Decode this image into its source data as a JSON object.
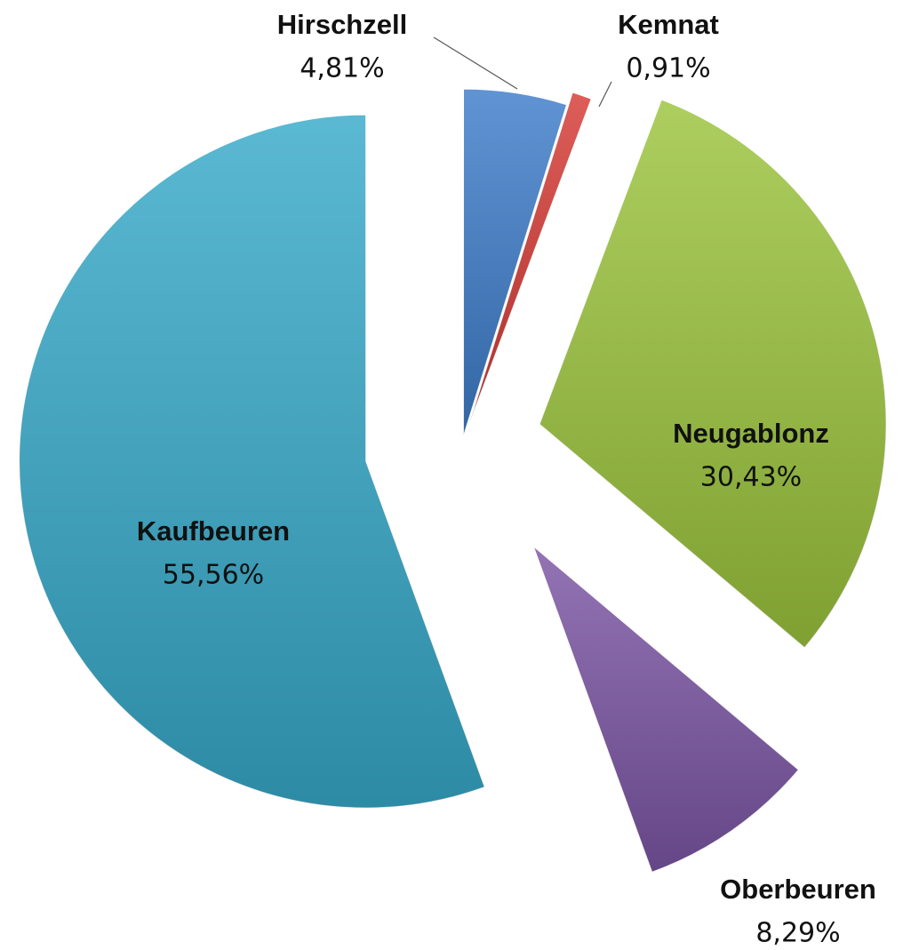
{
  "chart_data": {
    "type": "pie",
    "categories": [
      "Hirschzell",
      "Kemnat",
      "Neugablonz",
      "Oberbeuren",
      "Kaufbeuren"
    ],
    "values": [
      4.81,
      0.91,
      30.43,
      8.29,
      55.56
    ],
    "value_labels": [
      "4,81%",
      "0,91%",
      "30,43%",
      "8,29%",
      "55,56%"
    ],
    "colors": [
      "#3d7cc9",
      "#d63a35",
      "#9bc43c",
      "#7b55a3",
      "#36a9c9"
    ]
  }
}
